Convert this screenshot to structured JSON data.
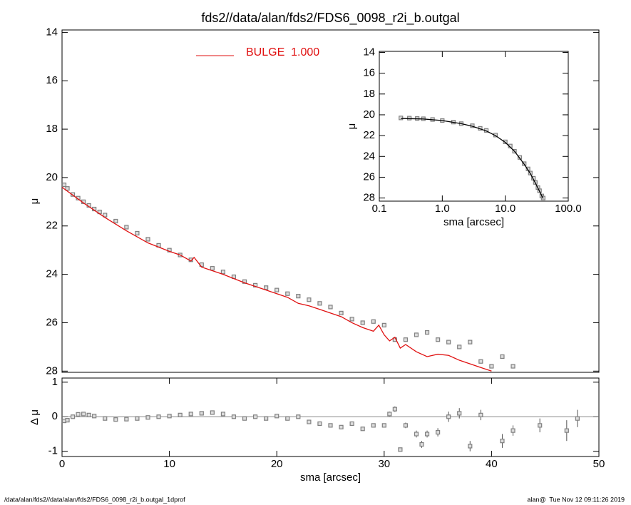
{
  "chart_data": [
    {
      "type": "profile",
      "title": "fds2//data/alan/fds2/FDS6_0098_r2i_b.outgal",
      "y_label": "μ",
      "xlim": [
        0,
        50
      ],
      "ylim": [
        28.05,
        13.9
      ],
      "yticks": [
        14,
        16,
        18,
        20,
        22,
        24,
        26,
        28
      ],
      "legend": "top",
      "series": [
        {
          "type": "points",
          "color": "#808080",
          "x": [
            0.2,
            0.5,
            1,
            1.5,
            2,
            2.5,
            3,
            3.5,
            4,
            5,
            6,
            7,
            8,
            9,
            10,
            11,
            12,
            13,
            14,
            15,
            16,
            17,
            18,
            19,
            20,
            21,
            22,
            23,
            24,
            25,
            26,
            27,
            28,
            29,
            30,
            31,
            32,
            33,
            34,
            35,
            36,
            37,
            38,
            39,
            40,
            41,
            42
          ],
          "values": [
            20.3,
            20.45,
            20.7,
            20.85,
            21.0,
            21.15,
            21.3,
            21.42,
            21.55,
            21.8,
            22.05,
            22.3,
            22.55,
            22.8,
            23.0,
            23.2,
            23.4,
            23.6,
            23.75,
            23.9,
            24.1,
            24.3,
            24.45,
            24.55,
            24.65,
            24.8,
            24.9,
            25.05,
            25.2,
            25.35,
            25.6,
            25.85,
            26.0,
            25.95,
            26.1,
            26.7,
            26.7,
            26.5,
            26.4,
            26.7,
            26.8,
            27.0,
            26.8,
            27.6,
            27.8,
            27.4,
            27.8
          ]
        },
        {
          "type": "line",
          "name": "BULGE  1.000",
          "color": "#e01010",
          "x": [
            0,
            2,
            4,
            6,
            8,
            10,
            11,
            12,
            12.3,
            13,
            15,
            17,
            19,
            20,
            21,
            22,
            23,
            24,
            25,
            26,
            27,
            28,
            29,
            29.5,
            30,
            30.5,
            31,
            31.5,
            32,
            33,
            34,
            35,
            36,
            37,
            38,
            39,
            40
          ],
          "values": [
            20.4,
            21.05,
            21.65,
            22.2,
            22.7,
            23.05,
            23.2,
            23.45,
            23.3,
            23.7,
            24.0,
            24.35,
            24.65,
            24.8,
            24.95,
            25.2,
            25.3,
            25.45,
            25.6,
            25.75,
            26.0,
            26.2,
            26.35,
            26.1,
            26.5,
            26.75,
            26.6,
            27.05,
            26.9,
            27.2,
            27.4,
            27.3,
            27.35,
            27.55,
            27.7,
            27.85,
            28.0
          ]
        }
      ]
    },
    {
      "type": "profile",
      "x_label": "sma [arcsec]",
      "y_label": "Δ μ",
      "xlim": [
        0,
        50
      ],
      "xticks": [
        0,
        10,
        20,
        30,
        40,
        50
      ],
      "ylim": [
        -1.15,
        1.12
      ],
      "yticks": [
        -1,
        0,
        1
      ],
      "hline": 0,
      "series": [
        {
          "type": "points",
          "color": "#808080",
          "x": [
            0.2,
            0.5,
            1,
            1.5,
            2,
            2.5,
            3,
            4,
            5,
            6,
            7,
            8,
            9,
            10,
            11,
            12,
            13,
            14,
            15,
            16,
            17,
            18,
            19,
            20,
            21,
            22,
            23,
            24,
            25,
            26,
            27,
            28,
            29,
            30,
            30.5,
            31,
            31.5,
            32,
            33,
            33.5,
            34,
            35,
            36,
            37,
            38,
            39,
            41,
            42,
            44.5,
            47,
            48
          ],
          "values": [
            -0.12,
            -0.1,
            0.0,
            0.07,
            0.08,
            0.05,
            0.02,
            -0.05,
            -0.08,
            -0.07,
            -0.05,
            -0.02,
            0.0,
            0.02,
            0.05,
            0.08,
            0.1,
            0.12,
            0.08,
            0.0,
            -0.05,
            0.0,
            -0.05,
            0.02,
            -0.05,
            0.0,
            -0.15,
            -0.2,
            -0.25,
            -0.3,
            -0.2,
            -0.35,
            -0.25,
            -0.25,
            0.08,
            0.22,
            -0.95,
            -0.25,
            -0.5,
            -0.8,
            -0.5,
            -0.45,
            0.0,
            0.1,
            -0.85,
            0.05,
            -0.7,
            -0.4,
            -0.25,
            -0.4,
            -0.05
          ],
          "errors": [
            0.01,
            0.01,
            0.01,
            0.01,
            0.01,
            0.01,
            0.01,
            0.01,
            0.01,
            0.01,
            0.01,
            0.01,
            0.01,
            0.01,
            0.01,
            0.01,
            0.01,
            0.01,
            0.02,
            0.02,
            0.02,
            0.02,
            0.02,
            0.02,
            0.03,
            0.03,
            0.03,
            0.03,
            0.04,
            0.04,
            0.05,
            0.05,
            0.05,
            0.06,
            0.07,
            0.08,
            0.05,
            0.08,
            0.1,
            0.1,
            0.1,
            0.12,
            0.15,
            0.15,
            0.15,
            0.15,
            0.2,
            0.15,
            0.2,
            0.3,
            0.25
          ]
        }
      ]
    },
    {
      "type": "profile",
      "x_label": "sma [arcsec]",
      "y_label": "μ",
      "xlog": true,
      "xlim": [
        0.1,
        100
      ],
      "xticks": [
        0.1,
        {
          "value": 1,
          "label": "1.0"
        },
        {
          "value": 10,
          "label": "10.0"
        },
        {
          "value": 100,
          "label": "100.0"
        }
      ],
      "ylim": [
        28.3,
        13.9
      ],
      "yticks": [
        14,
        16,
        18,
        20,
        22,
        24,
        26,
        28
      ],
      "series": [
        {
          "type": "points",
          "color": "#808080",
          "x": [
            0.22,
            0.3,
            0.4,
            0.5,
            0.7,
            1,
            1.5,
            2,
            3,
            4,
            5,
            7,
            10,
            12,
            14,
            17,
            20,
            23,
            25,
            28,
            30,
            33,
            35,
            38,
            40
          ],
          "values": [
            20.3,
            20.32,
            20.35,
            20.38,
            20.45,
            20.55,
            20.7,
            20.85,
            21.05,
            21.3,
            21.5,
            21.95,
            22.6,
            23.0,
            23.5,
            24.1,
            24.7,
            25.2,
            25.6,
            26.1,
            26.5,
            27.0,
            27.3,
            27.8,
            28.0
          ]
        },
        {
          "type": "line",
          "color": "#000000",
          "x": [
            0.22,
            0.5,
            1,
            2,
            3,
            5,
            7,
            10,
            14,
            20,
            25,
            30,
            35,
            40
          ],
          "values": [
            20.35,
            20.4,
            20.55,
            20.85,
            21.1,
            21.55,
            22.0,
            22.65,
            23.5,
            24.75,
            25.65,
            26.55,
            27.35,
            28.05
          ]
        }
      ]
    }
  ],
  "footer": {
    "left": "/data/alan/fds2//data/alan/fds2/FDS6_0098_r2i_b.outgal_1dprof",
    "right": "alan@  Tue Nov 12 09:11:26 2019"
  }
}
